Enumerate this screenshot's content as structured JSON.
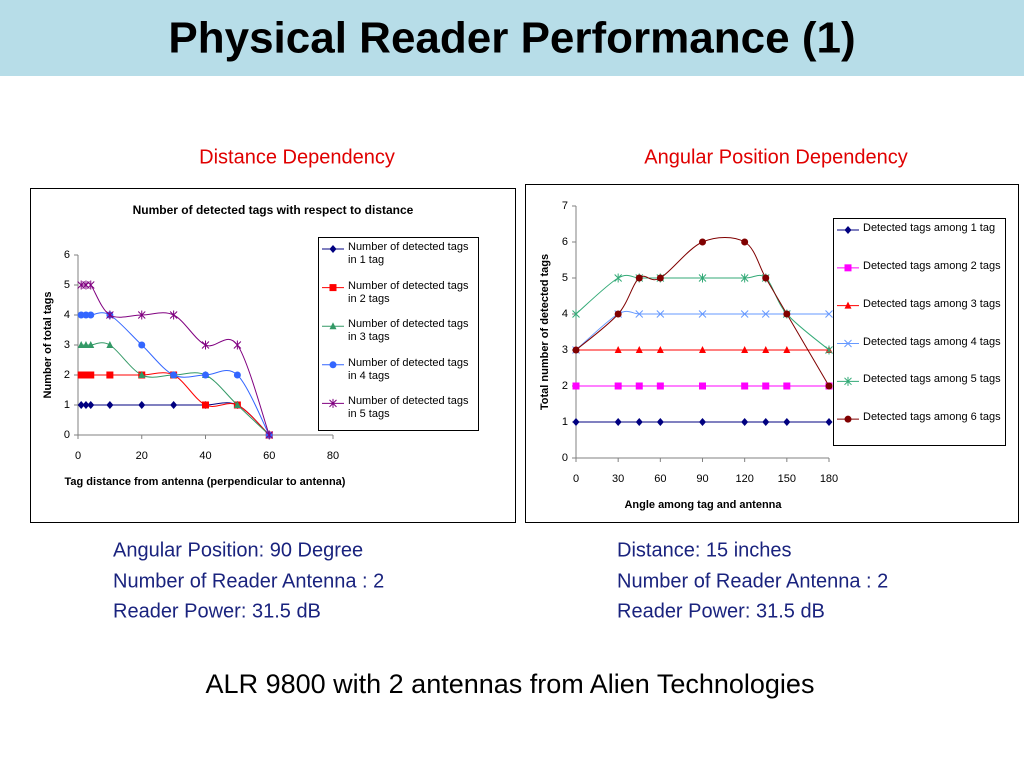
{
  "slide": {
    "title": "Physical Reader Performance (1)",
    "sections": [
      {
        "heading": "Distance Dependency",
        "notes": [
          "Angular Position: 90 Degree",
          "Number of Reader Antenna : 2",
          "Reader Power: 31.5 dB"
        ]
      },
      {
        "heading": "Angular Position Dependency",
        "notes": [
          "Distance: 15 inches",
          "Number of Reader Antenna : 2",
          "Reader Power: 31.5 dB"
        ]
      }
    ],
    "footer": "ALR 9800 with 2 antennas from Alien Technologies"
  },
  "chart_data": [
    {
      "type": "line",
      "title": "Number of detected tags with respect to distance",
      "xlabel": "Tag distance from antenna (perpendicular to antenna)",
      "ylabel": "Number of total tags",
      "x": [
        1,
        2.5,
        4,
        10,
        20,
        30,
        40,
        50,
        60
      ],
      "xlim": [
        0,
        80
      ],
      "xticks": [
        0,
        20,
        40,
        60,
        80
      ],
      "ylim": [
        0,
        6
      ],
      "yticks": [
        0,
        1,
        2,
        3,
        4,
        5,
        6
      ],
      "smooth": true,
      "series": [
        {
          "name": "Number of detected tags in 1 tag",
          "color": "#000080",
          "marker": "diamond",
          "values": [
            1,
            1,
            1,
            1,
            1,
            1,
            1,
            1,
            0
          ]
        },
        {
          "name": "Number of detected tags in 2 tags",
          "color": "#ff0000",
          "marker": "square",
          "values": [
            2,
            2,
            2,
            2,
            2,
            2,
            1,
            1,
            0
          ]
        },
        {
          "name": "Number of detected tags in 3 tags",
          "color": "#339966",
          "marker": "triangle",
          "values": [
            3,
            3,
            3,
            3,
            2,
            2,
            2,
            1,
            0
          ]
        },
        {
          "name": "Number of detected tags in 4 tags",
          "color": "#3366ff",
          "marker": "circle",
          "values": [
            4,
            4,
            4,
            4,
            3,
            2,
            2,
            2,
            0
          ]
        },
        {
          "name": "Number of detected tags in 5 tags",
          "color": "#800080",
          "marker": "star",
          "values": [
            5,
            5,
            5,
            4,
            4,
            4,
            3,
            3,
            0
          ]
        }
      ]
    },
    {
      "type": "line",
      "xlabel": "Angle among tag and antenna",
      "ylabel": "Total number of detected tags",
      "x": [
        0,
        30,
        45,
        60,
        90,
        120,
        135,
        150,
        180
      ],
      "xlim": [
        0,
        180
      ],
      "xticks": [
        0,
        30,
        60,
        90,
        120,
        150,
        180
      ],
      "ylim": [
        0,
        7
      ],
      "yticks": [
        0,
        1,
        2,
        3,
        4,
        5,
        6,
        7
      ],
      "smooth": true,
      "series": [
        {
          "name": "Detected tags among 1 tag",
          "color": "#000080",
          "marker": "diamond",
          "values": [
            1,
            1,
            1,
            1,
            1,
            1,
            1,
            1,
            1
          ]
        },
        {
          "name": "Detected tags among 2 tags",
          "color": "#ff00ff",
          "marker": "square",
          "values": [
            2,
            2,
            2,
            2,
            2,
            2,
            2,
            2,
            2
          ]
        },
        {
          "name": "Detected tags among 3 tags",
          "color": "#ff0000",
          "marker": "triangle",
          "values": [
            3,
            3,
            3,
            3,
            3,
            3,
            3,
            3,
            3
          ]
        },
        {
          "name": "Detected tags among 4 tags",
          "color": "#6699ff",
          "marker": "x",
          "values": [
            3,
            4,
            4,
            4,
            4,
            4,
            4,
            4,
            4
          ]
        },
        {
          "name": "Detected tags among 5 tags",
          "color": "#33aa77",
          "marker": "star",
          "values": [
            4,
            5,
            5,
            5,
            5,
            5,
            5,
            4,
            3
          ]
        },
        {
          "name": "Detected tags among 6 tags",
          "color": "#800000",
          "marker": "circle",
          "values": [
            3,
            4,
            5,
            5,
            6,
            6,
            5,
            4,
            2
          ]
        }
      ]
    }
  ]
}
